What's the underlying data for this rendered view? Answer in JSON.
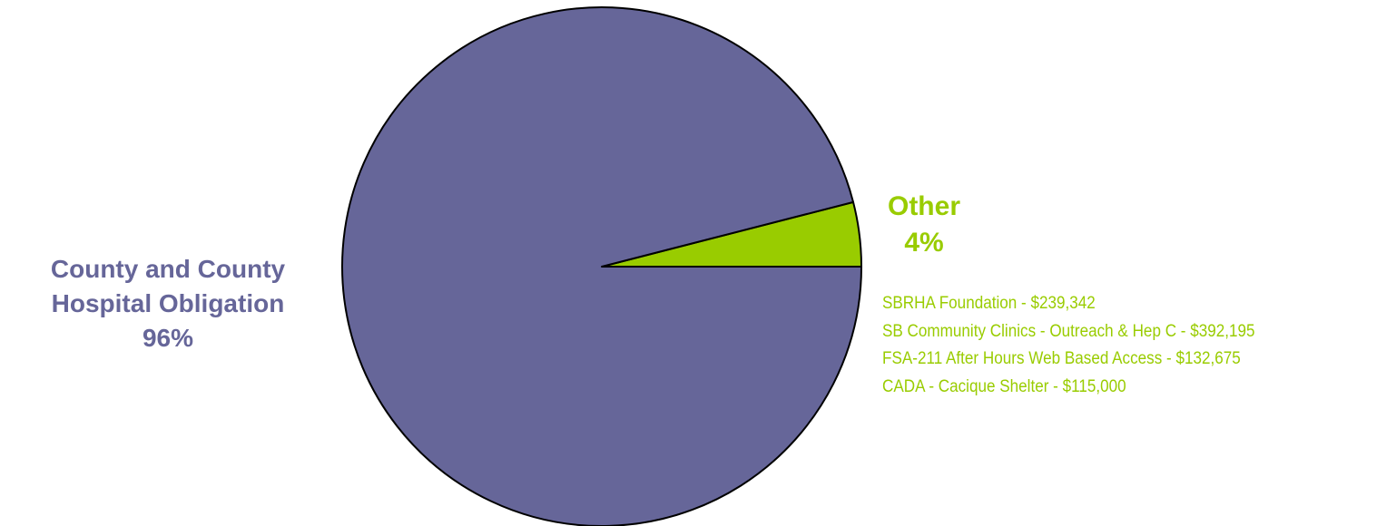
{
  "chart_data": {
    "type": "pie",
    "slices": [
      {
        "label_lines": [
          "County and County",
          "Hospital Obligation"
        ],
        "percent_label": "96%",
        "value": 96,
        "color": "#666699"
      },
      {
        "label_lines": [
          "Other"
        ],
        "percent_label": "4%",
        "value": 4,
        "color": "#99CC00"
      }
    ],
    "other_breakdown": [
      "SBRHA Foundation - $239,342",
      "SB Community Clinics - Outreach & Hep C - $392,195",
      "FSA-211 After Hours Web Based Access - $132,675",
      "CADA - Cacique Shelter - $115,000"
    ],
    "start_angle_deg": 0,
    "direction": "counterclockwise",
    "outline_color": "#000000"
  }
}
